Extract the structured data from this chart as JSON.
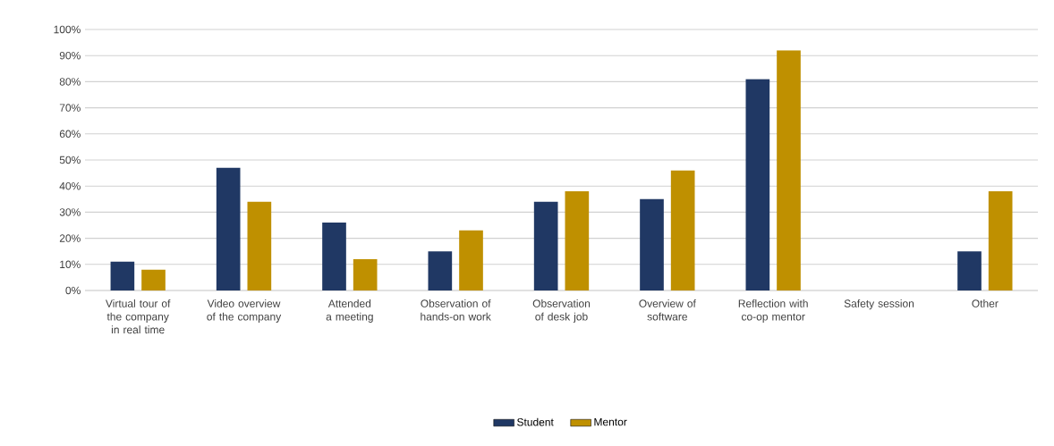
{
  "chart_data": {
    "type": "bar",
    "categories": [
      "Virtual tour of the company in real time",
      "Video overview of the company",
      "Attended a meeting",
      "Observation of hands-on work",
      "Observation of desk job",
      "Overview of software",
      "Reflection with co-op mentor",
      "Safety session",
      "Other"
    ],
    "series": [
      {
        "name": "Student",
        "color": "#203864",
        "values": [
          11,
          47,
          26,
          15,
          34,
          35,
          81,
          0,
          15
        ]
      },
      {
        "name": "Mentor",
        "color": "#bf9000",
        "values": [
          8,
          34,
          12,
          23,
          38,
          46,
          92,
          0,
          38
        ]
      }
    ],
    "ylim": [
      0,
      100
    ],
    "yticks": [
      {
        "value": 0,
        "label": "0%"
      },
      {
        "value": 10,
        "label": "10%"
      },
      {
        "value": 20,
        "label": "20%"
      },
      {
        "value": 30,
        "label": "30%"
      },
      {
        "value": 40,
        "label": "40%"
      },
      {
        "value": 50,
        "label": "50%"
      },
      {
        "value": 60,
        "label": "60%"
      },
      {
        "value": 70,
        "label": "70%"
      },
      {
        "value": 80,
        "label": "80%"
      },
      {
        "value": 90,
        "label": "90%"
      },
      {
        "value": 100,
        "label": "100%"
      }
    ],
    "grid": "y",
    "legend": "bottom"
  }
}
